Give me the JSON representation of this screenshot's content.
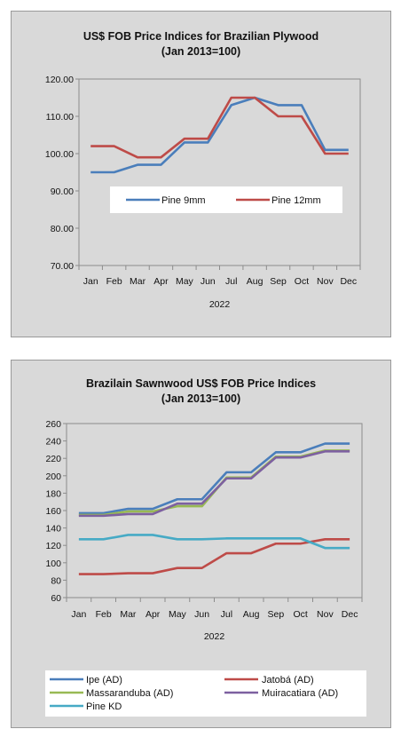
{
  "chart_data": [
    {
      "type": "line",
      "title": "US$ FOB Price Indices for Brazilian Plywood",
      "subtitle": "(Jan 2013=100)",
      "categories": [
        "Jan",
        "Feb",
        "Mar",
        "Apr",
        "May",
        "Jun",
        "Jul",
        "Aug",
        "Sep",
        "Oct",
        "Nov",
        "Dec"
      ],
      "xlabel": "2022",
      "ylim": [
        70,
        120
      ],
      "yticks": [
        "70.00",
        "80.00",
        "90.00",
        "100.00",
        "110.00",
        "120.00"
      ],
      "ytick_values": [
        70,
        80,
        90,
        100,
        110,
        120
      ],
      "grid": false,
      "legend": "center",
      "series": [
        {
          "name": "Pine 9mm",
          "color": "#4a7ebb",
          "values": [
            95,
            95,
            97,
            97,
            103,
            103,
            113,
            115,
            113,
            113,
            101,
            101
          ]
        },
        {
          "name": "Pine 12mm",
          "color": "#be4b48",
          "values": [
            102,
            102,
            99,
            99,
            104,
            104,
            115,
            115,
            110,
            110,
            100,
            100
          ]
        }
      ]
    },
    {
      "type": "line",
      "title": "Brazilain Sawnwood US$ FOB Price Indices",
      "subtitle": "(Jan 2013=100)",
      "categories": [
        "Jan",
        "Feb",
        "Mar",
        "Apr",
        "May",
        "Jun",
        "Jul",
        "Aug",
        "Sep",
        "Oct",
        "Nov",
        "Dec"
      ],
      "xlabel": "2022",
      "ylim": [
        60,
        260
      ],
      "yticks": [
        "60",
        "80",
        "100",
        "120",
        "140",
        "160",
        "180",
        "200",
        "220",
        "240",
        "260"
      ],
      "ytick_values": [
        60,
        80,
        100,
        120,
        140,
        160,
        180,
        200,
        220,
        240,
        260
      ],
      "grid": false,
      "legend": "bottom",
      "series": [
        {
          "name": "Ipe (AD)",
          "color": "#4a7ebb",
          "values": [
            157,
            157,
            162,
            162,
            173,
            173,
            204,
            204,
            227,
            227,
            237,
            237
          ]
        },
        {
          "name": "Jatobá (AD)",
          "color": "#be4b48",
          "values": [
            87,
            87,
            88,
            88,
            94,
            94,
            111,
            111,
            122,
            122,
            127,
            127
          ]
        },
        {
          "name": "Massaranduba (AD)",
          "color": "#98b954",
          "values": [
            155,
            155,
            159,
            159,
            165,
            165,
            198,
            198,
            222,
            222,
            229,
            229
          ]
        },
        {
          "name": "Muiracatiara (AD)",
          "color": "#7d60a0",
          "values": [
            154,
            154,
            156,
            156,
            168,
            168,
            197,
            197,
            221,
            221,
            228,
            228
          ]
        },
        {
          "name": "Pine KD",
          "color": "#46aac5",
          "values": [
            127,
            127,
            132,
            132,
            127,
            127,
            128,
            128,
            128,
            128,
            117,
            117
          ]
        }
      ]
    }
  ]
}
